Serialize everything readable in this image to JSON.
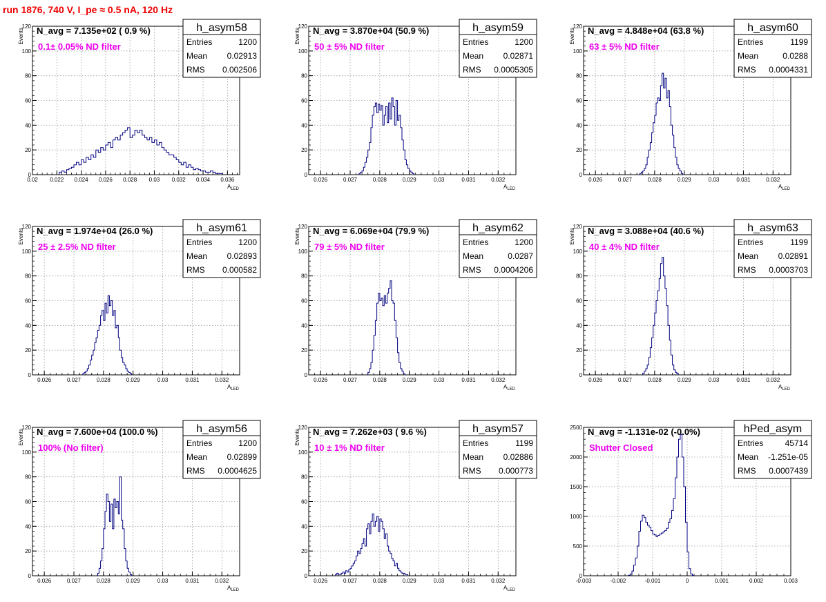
{
  "page": {
    "title": "run 1876,   740 V, I_pe ≈ 0.5 nA, 120 Hz"
  },
  "colors": {
    "histogram": "#000080",
    "annotation": "#ee00ee",
    "title": "#ee0000",
    "grid": "#9a9a9a"
  },
  "chart_data": [
    {
      "type": "histogram",
      "name": "h_asym58",
      "navg": "N_avg = 7.135e+02 ( 0.9 %)",
      "label": "0.1± 0.05% ND filter",
      "stats": [
        [
          "Entries",
          "1200"
        ],
        [
          "Mean",
          "0.02913"
        ],
        [
          "RMS",
          "0.002506"
        ]
      ],
      "xlabel": "A_LED",
      "ylabel": "Events",
      "xlim": [
        0.02,
        0.037
      ],
      "ylim": [
        0,
        120
      ],
      "xticks": [
        0.02,
        0.022,
        0.024,
        0.026,
        0.028,
        0.03,
        0.032,
        0.034,
        0.036
      ],
      "xtick_labels": [
        "0.02",
        "0.022",
        "0.024",
        "0.026",
        "0.028",
        "0.03",
        "0.032",
        "0.034",
        "0.036"
      ],
      "yticks": [
        0,
        20,
        40,
        60,
        80,
        100,
        120
      ],
      "ytick_labels": [
        "0",
        "20",
        "40",
        "60",
        "80",
        "100",
        "120"
      ],
      "bins_start": 0.0222,
      "bin_width": 0.0002,
      "counts": [
        2,
        3,
        2,
        4,
        5,
        6,
        8,
        10,
        8,
        12,
        10,
        14,
        12,
        16,
        14,
        20,
        18,
        22,
        20,
        24,
        26,
        22,
        28,
        30,
        28,
        32,
        34,
        36,
        38,
        30,
        32,
        36,
        34,
        36,
        32,
        30,
        28,
        30,
        26,
        28,
        24,
        26,
        22,
        20,
        18,
        16,
        16,
        14,
        12,
        10,
        8,
        10,
        6,
        8,
        6,
        4,
        5,
        4,
        3,
        3,
        2,
        2,
        3,
        2,
        1,
        1,
        1
      ]
    },
    {
      "type": "histogram",
      "name": "h_asym59",
      "navg": "N_avg = 3.870e+04 (50.9 %)",
      "label": "50 ± 5% ND filter",
      "stats": [
        [
          "Entries",
          "1200"
        ],
        [
          "Mean",
          "0.02871"
        ],
        [
          "RMS",
          "0.0005305"
        ]
      ],
      "xlabel": "A_LED",
      "ylabel": "Events",
      "xlim": [
        0.0256,
        0.0326
      ],
      "ylim": [
        0,
        120
      ],
      "xticks": [
        0.026,
        0.027,
        0.028,
        0.029,
        0.03,
        0.031,
        0.032
      ],
      "xtick_labels": [
        "0.026",
        "0.027",
        "0.028",
        "0.029",
        "0.03",
        "0.031",
        "0.032"
      ],
      "yticks": [
        0,
        20,
        40,
        60,
        80,
        100,
        120
      ],
      "ytick_labels": [
        "0",
        "20",
        "40",
        "60",
        "80",
        "100",
        "120"
      ],
      "bins_start": 0.0273,
      "bin_width": 5e-05,
      "counts": [
        1,
        2,
        3,
        6,
        10,
        14,
        20,
        26,
        38,
        48,
        55,
        58,
        50,
        57,
        52,
        56,
        40,
        48,
        55,
        42,
        58,
        45,
        62,
        55,
        40,
        60,
        44,
        48,
        38,
        28,
        20,
        12,
        8,
        5,
        3,
        2,
        1
      ]
    },
    {
      "type": "histogram",
      "name": "h_asym60",
      "navg": "N_avg = 4.848e+04 (63.8 %)",
      "label": "63 ± 5% ND filter",
      "stats": [
        [
          "Entries",
          "1199"
        ],
        [
          "Mean",
          "0.0288"
        ],
        [
          "RMS",
          "0.0004331"
        ]
      ],
      "xlabel": "A_LED",
      "ylabel": "Events",
      "xlim": [
        0.0256,
        0.0326
      ],
      "ylim": [
        0,
        120
      ],
      "xticks": [
        0.026,
        0.027,
        0.028,
        0.029,
        0.03,
        0.031,
        0.032
      ],
      "xtick_labels": [
        "0.026",
        "0.027",
        "0.028",
        "0.029",
        "0.03",
        "0.031",
        "0.032"
      ],
      "yticks": [
        0,
        20,
        40,
        60,
        80,
        100,
        120
      ],
      "ytick_labels": [
        "0",
        "20",
        "40",
        "60",
        "80",
        "100",
        "120"
      ],
      "bins_start": 0.0275,
      "bin_width": 5e-05,
      "counts": [
        1,
        2,
        3,
        5,
        8,
        14,
        20,
        26,
        34,
        42,
        48,
        58,
        62,
        60,
        72,
        82,
        70,
        78,
        62,
        68,
        55,
        40,
        32,
        22,
        14,
        8,
        5,
        3,
        1
      ]
    },
    {
      "type": "histogram",
      "name": "h_asym61",
      "navg": "N_avg = 1.974e+04 (26.0 %)",
      "label": "25 ± 2.5% ND filter",
      "stats": [
        [
          "Entries",
          "1200"
        ],
        [
          "Mean",
          "0.02893"
        ],
        [
          "RMS",
          "0.000582"
        ]
      ],
      "xlabel": "A_LED",
      "ylabel": "Events",
      "xlim": [
        0.0256,
        0.0326
      ],
      "ylim": [
        0,
        120
      ],
      "xticks": [
        0.026,
        0.027,
        0.028,
        0.029,
        0.03,
        0.031,
        0.032
      ],
      "xtick_labels": [
        "0.026",
        "0.027",
        "0.028",
        "0.029",
        "0.03",
        "0.031",
        "0.032"
      ],
      "yticks": [
        0,
        20,
        40,
        60,
        80,
        100,
        120
      ],
      "ytick_labels": [
        "0",
        "20",
        "40",
        "60",
        "80",
        "100",
        "120"
      ],
      "bins_start": 0.0273,
      "bin_width": 5e-05,
      "counts": [
        1,
        2,
        3,
        5,
        8,
        12,
        16,
        20,
        26,
        30,
        36,
        40,
        48,
        52,
        44,
        58,
        50,
        64,
        56,
        60,
        48,
        52,
        38,
        40,
        30,
        20,
        14,
        10,
        8,
        5,
        3,
        2,
        1
      ]
    },
    {
      "type": "histogram",
      "name": "h_asym62",
      "navg": "N_avg = 6.069e+04 (79.9 %)",
      "label": "79 ± 5% ND filter",
      "stats": [
        [
          "Entries",
          "1200"
        ],
        [
          "Mean",
          "0.0287"
        ],
        [
          "RMS",
          "0.0004206"
        ]
      ],
      "xlabel": "A_LED",
      "ylabel": "Events",
      "xlim": [
        0.0256,
        0.0326
      ],
      "ylim": [
        0,
        120
      ],
      "xticks": [
        0.026,
        0.027,
        0.028,
        0.029,
        0.03,
        0.031,
        0.032
      ],
      "xtick_labels": [
        "0.026",
        "0.027",
        "0.028",
        "0.029",
        "0.03",
        "0.031",
        "0.032"
      ],
      "yticks": [
        0,
        20,
        40,
        60,
        80,
        100,
        120
      ],
      "ytick_labels": [
        "0",
        "20",
        "40",
        "60",
        "80",
        "100",
        "120"
      ],
      "bins_start": 0.0276,
      "bin_width": 5e-05,
      "counts": [
        2,
        5,
        10,
        20,
        32,
        44,
        58,
        66,
        60,
        62,
        56,
        64,
        58,
        66,
        70,
        76,
        60,
        58,
        44,
        30,
        18,
        10,
        5,
        3,
        1
      ]
    },
    {
      "type": "histogram",
      "name": "h_asym63",
      "navg": "N_avg = 3.088e+04 (40.6 %)",
      "label": "40 ± 4% ND filter",
      "stats": [
        [
          "Entries",
          "1199"
        ],
        [
          "Mean",
          "0.02891"
        ],
        [
          "RMS",
          "0.0003703"
        ]
      ],
      "xlabel": "A_LED",
      "ylabel": "Events",
      "xlim": [
        0.0256,
        0.0326
      ],
      "ylim": [
        0,
        120
      ],
      "xticks": [
        0.026,
        0.027,
        0.028,
        0.029,
        0.03,
        0.031,
        0.032
      ],
      "xtick_labels": [
        "0.026",
        "0.027",
        "0.028",
        "0.029",
        "0.03",
        "0.031",
        "0.032"
      ],
      "yticks": [
        0,
        20,
        40,
        60,
        80,
        100,
        120
      ],
      "ytick_labels": [
        "0",
        "20",
        "40",
        "60",
        "80",
        "100",
        "120"
      ],
      "bins_start": 0.0276,
      "bin_width": 5e-05,
      "counts": [
        1,
        3,
        5,
        8,
        14,
        22,
        30,
        40,
        50,
        60,
        68,
        78,
        90,
        95,
        80,
        70,
        56,
        40,
        28,
        16,
        8,
        4,
        2,
        1
      ]
    },
    {
      "type": "histogram",
      "name": "h_asym56",
      "navg": "N_avg = 7.600e+04 (100.0 %)",
      "label": "100% (No filter)",
      "stats": [
        [
          "Entries",
          "1200"
        ],
        [
          "Mean",
          "0.02899"
        ],
        [
          "RMS",
          "0.0004625"
        ]
      ],
      "xlabel": "A_LED",
      "ylabel": "Events",
      "xlim": [
        0.0256,
        0.0326
      ],
      "ylim": [
        0,
        120
      ],
      "xticks": [
        0.026,
        0.027,
        0.028,
        0.029,
        0.03,
        0.031,
        0.032
      ],
      "xtick_labels": [
        "0.026",
        "0.027",
        "0.028",
        "0.029",
        "0.03",
        "0.031",
        "0.032"
      ],
      "yticks": [
        0,
        20,
        40,
        60,
        80,
        100,
        120
      ],
      "ytick_labels": [
        "0",
        "20",
        "40",
        "60",
        "80",
        "100",
        "120"
      ],
      "bins_start": 0.0278,
      "bin_width": 5e-05,
      "counts": [
        2,
        6,
        12,
        22,
        38,
        52,
        66,
        60,
        44,
        58,
        38,
        62,
        55,
        60,
        50,
        80,
        45,
        38,
        22,
        12,
        6,
        3,
        1
      ]
    },
    {
      "type": "histogram",
      "name": "h_asym57",
      "navg": "N_avg = 7.262e+03 ( 9.6 %)",
      "label": "10 ± 1% ND filter",
      "stats": [
        [
          "Entries",
          "1199"
        ],
        [
          "Mean",
          "0.02886"
        ],
        [
          "RMS",
          "0.000773"
        ]
      ],
      "xlabel": "A_LED",
      "ylabel": "Events",
      "xlim": [
        0.0256,
        0.0326
      ],
      "ylim": [
        0,
        120
      ],
      "xticks": [
        0.026,
        0.027,
        0.028,
        0.029,
        0.03,
        0.031,
        0.032
      ],
      "xtick_labels": [
        "0.026",
        "0.027",
        "0.028",
        "0.029",
        "0.03",
        "0.031",
        "0.032"
      ],
      "yticks": [
        0,
        20,
        40,
        60,
        80,
        100,
        120
      ],
      "ytick_labels": [
        "0",
        "20",
        "40",
        "60",
        "80",
        "100",
        "120"
      ],
      "bins_start": 0.0265,
      "bin_width": 5e-05,
      "counts": [
        1,
        2,
        1,
        1,
        2,
        3,
        2,
        4,
        3,
        5,
        6,
        8,
        10,
        12,
        16,
        20,
        18,
        22,
        26,
        30,
        24,
        38,
        42,
        34,
        44,
        50,
        40,
        44,
        48,
        36,
        46,
        44,
        38,
        30,
        34,
        24,
        20,
        18,
        14,
        12,
        8,
        10,
        6,
        4,
        3,
        2,
        2,
        1,
        1
      ]
    },
    {
      "type": "histogram",
      "name": "hPed_asym",
      "navg": "N_avg = -1.131e-02 (-0.0%)",
      "label": "Shutter Closed",
      "stats": [
        [
          "Entries",
          "45714"
        ],
        [
          "Mean",
          "-1.251e-05"
        ],
        [
          "RMS",
          "0.0007439"
        ]
      ],
      "xlabel": "",
      "ylabel": "",
      "xlim": [
        -0.003,
        0.003
      ],
      "ylim": [
        0,
        2500
      ],
      "xticks": [
        -0.003,
        -0.002,
        -0.001,
        0,
        0.001,
        0.002,
        0.003
      ],
      "xtick_labels": [
        "-0.003",
        "-0.002",
        "-0.001",
        "0",
        "0.001",
        "0.002",
        "0.003"
      ],
      "yticks": [
        0,
        500,
        1000,
        1500,
        2000,
        2500
      ],
      "ytick_labels": [
        "0",
        "500",
        "1000",
        "1500",
        "2000",
        "2500"
      ],
      "bins_start": -0.0017,
      "bin_width": 5e-05,
      "counts": [
        10,
        30,
        80,
        180,
        300,
        500,
        750,
        920,
        1020,
        980,
        900,
        850,
        820,
        760,
        700,
        690,
        660,
        680,
        700,
        720,
        740,
        760,
        800,
        900,
        960,
        1100,
        1300,
        1650,
        2000,
        2300,
        2380,
        2000,
        1500,
        900,
        400,
        120,
        30,
        5
      ]
    }
  ]
}
